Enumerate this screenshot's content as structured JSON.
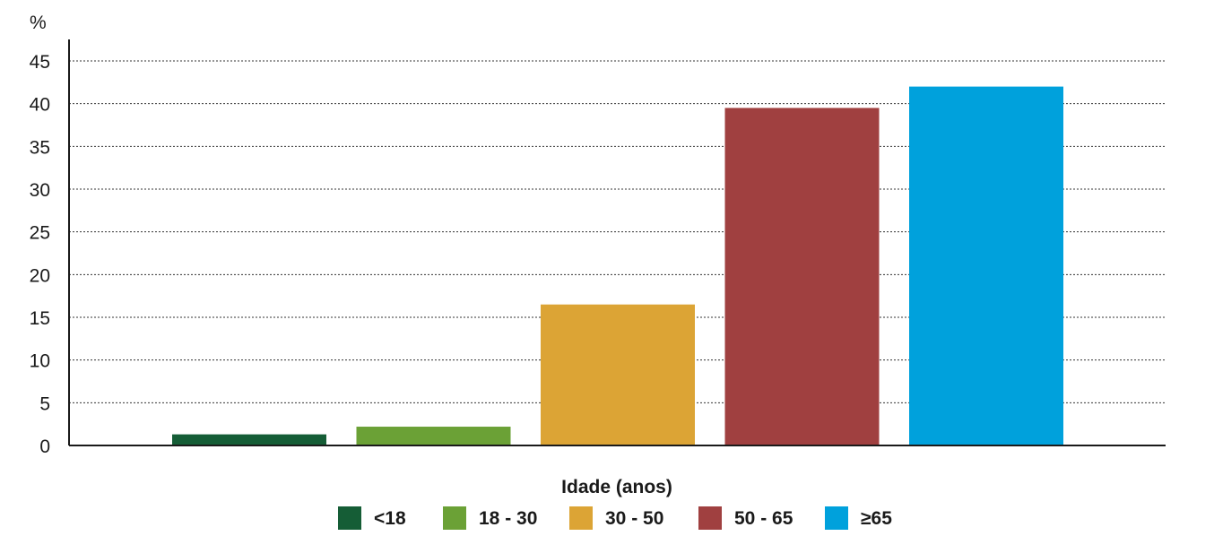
{
  "chart_data": {
    "type": "bar",
    "ylabel": "%",
    "xlabel": "Idade (anos)",
    "ylim": [
      0,
      45
    ],
    "yticks": [
      0,
      5,
      10,
      15,
      20,
      25,
      30,
      35,
      40,
      45
    ],
    "grid": true,
    "legend_position": "bottom",
    "categories": [
      "<18",
      "18 - 30",
      "30 - 50",
      "50 - 65",
      "≥65"
    ],
    "values": [
      1.3,
      2.2,
      16.5,
      39.5,
      42.0
    ],
    "colors": [
      "#155d36",
      "#6ba136",
      "#dca435",
      "#a04040",
      "#00a1dc"
    ]
  }
}
